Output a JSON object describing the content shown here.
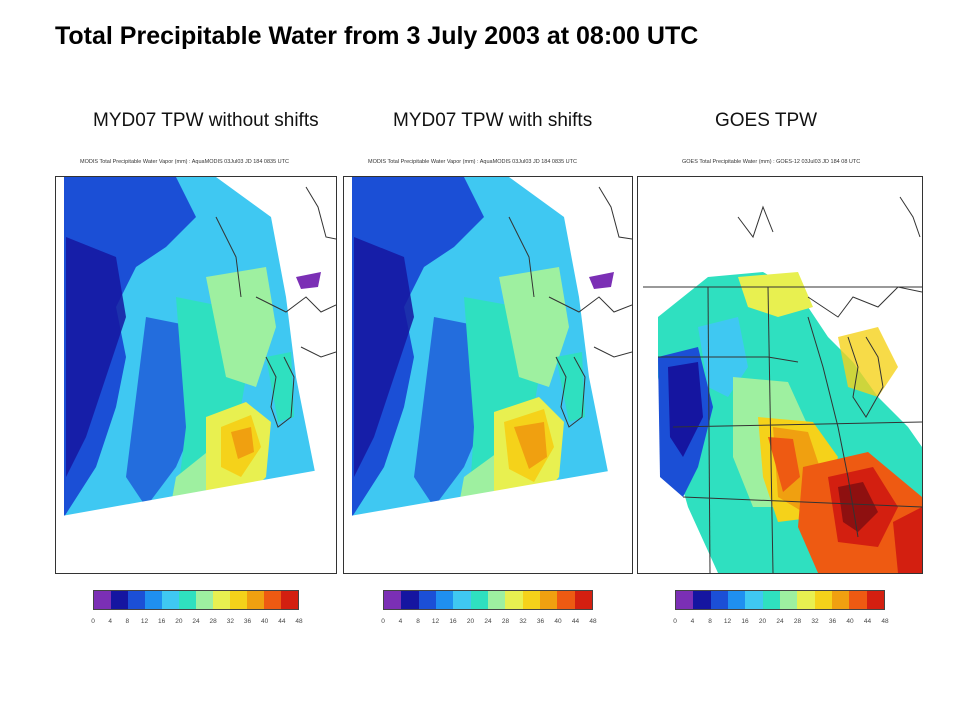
{
  "slide": {
    "title": "Total Precipitable Water from 3 July 2003 at 08:00 UTC"
  },
  "panels": [
    {
      "title": "MYD07 TPW without shifts",
      "subtitle": "MODIS Total Precipitable Water Vapor (mm) : AquaMODIS 03Jul03 JD 184 0835 UTC"
    },
    {
      "title": "MYD07 TPW with shifts",
      "subtitle": "MODIS Total Precipitable Water Vapor (mm) : AquaMODIS 03Jul03 JD 184 0835 UTC"
    },
    {
      "title": "GOES TPW",
      "subtitle": "GOES Total Precipitable Water (mm) : GOES-12 03Jul03 JD 184 08 UTC"
    }
  ],
  "colorbar": {
    "ticks": [
      "0",
      "4",
      "8",
      "12",
      "16",
      "20",
      "24",
      "28",
      "32",
      "36",
      "40",
      "44",
      "48"
    ],
    "colors": [
      "#7b2fb5",
      "#1515a0",
      "#1b4fd6",
      "#1f8ff0",
      "#3fc8f2",
      "#2fe0c0",
      "#9ef0a0",
      "#e8f050",
      "#f5d21a",
      "#f0a010",
      "#ee5a12",
      "#d31f10",
      "#8e1010"
    ]
  }
}
